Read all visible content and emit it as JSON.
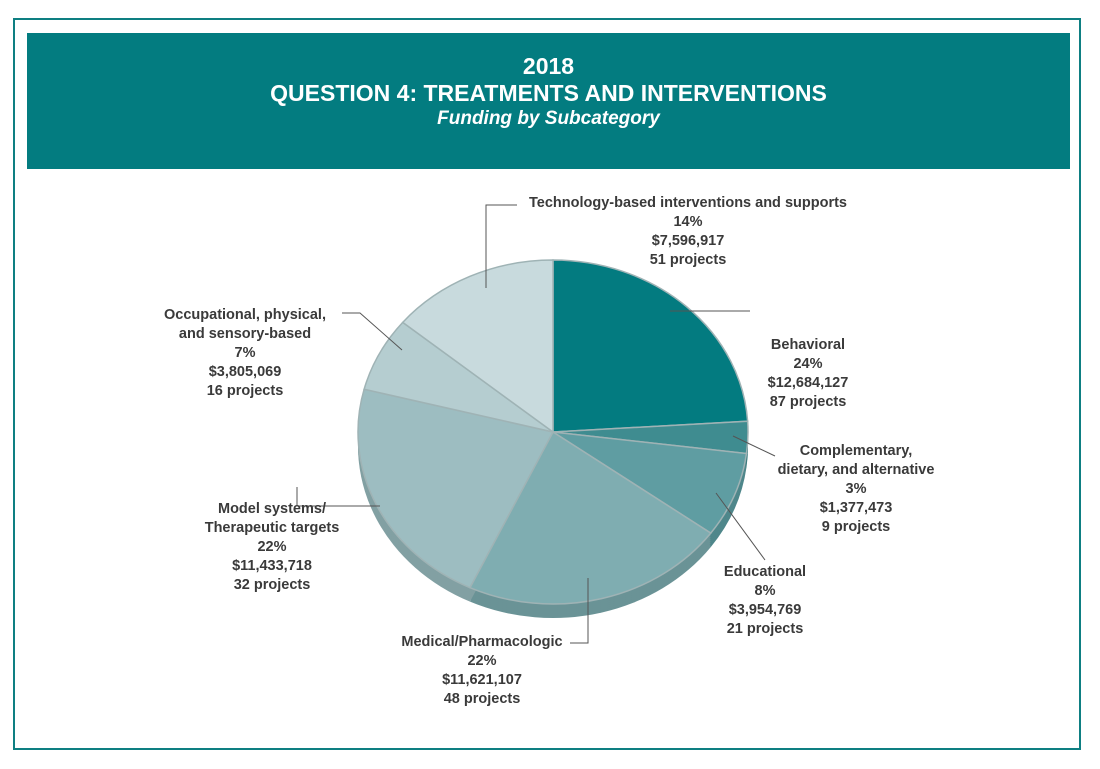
{
  "header": {
    "year": "2018",
    "title": "QUESTION 4: TREATMENTS AND INTERVENTIONS",
    "subtitle": "Funding by Subcategory"
  },
  "chart_data": {
    "type": "pie",
    "title": "2018 QUESTION 4: TREATMENTS AND INTERVENTIONS",
    "subtitle": "Funding by Subcategory",
    "slices": [
      {
        "name": "Behavioral",
        "lines": [
          "Behavioral"
        ],
        "percent": 24,
        "percent_label": "24%",
        "amount": "$12,684,127",
        "projects": "87 projects",
        "color": "#037b80",
        "side": "#02676b"
      },
      {
        "name": "Complementary, dietary, and alternative",
        "lines": [
          "Complementary,",
          "dietary, and alternative"
        ],
        "percent": 3,
        "percent_label": "3%",
        "amount": "$1,377,473",
        "projects": "9 projects",
        "color": "#3f8c90",
        "side": "#347679"
      },
      {
        "name": "Educational",
        "lines": [
          "Educational"
        ],
        "percent": 8,
        "percent_label": "8%",
        "amount": "$3,954,769",
        "projects": "21 projects",
        "color": "#5f9da2",
        "side": "#4f878b"
      },
      {
        "name": "Medical/Pharmacologic",
        "lines": [
          "Medical/Pharmacologic"
        ],
        "percent": 22,
        "percent_label": "22%",
        "amount": "$11,621,107",
        "projects": "48 projects",
        "color": "#7fadb1",
        "side": "#6a9396"
      },
      {
        "name": "Model systems/ Therapeutic targets",
        "lines": [
          "Model systems/",
          "Therapeutic targets"
        ],
        "percent": 22,
        "percent_label": "22%",
        "amount": "$11,433,718",
        "projects": "32 projects",
        "color": "#9dbdc1",
        "side": "#82a0a3"
      },
      {
        "name": "Occupational, physical, and sensory-based",
        "lines": [
          "Occupational, physical,",
          "and sensory-based"
        ],
        "percent": 7,
        "percent_label": "7%",
        "amount": "$3,805,069",
        "projects": "16 projects",
        "color": "#b5cdd0",
        "side": "#97adb0"
      },
      {
        "name": "Technology-based interventions and supports",
        "lines": [
          "Technology-based interventions and supports"
        ],
        "percent": 14,
        "percent_label": "14%",
        "amount": "$7,596,917",
        "projects": "51 projects",
        "color": "#c8dadd",
        "side": "#a8bcbf"
      }
    ]
  }
}
